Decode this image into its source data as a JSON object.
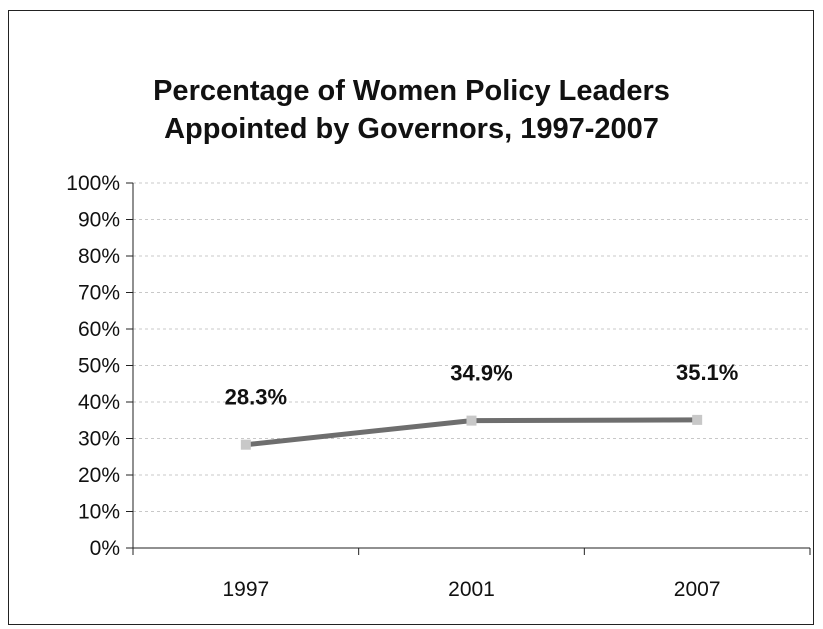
{
  "chart_data": {
    "type": "line",
    "title_lines": [
      "Percentage of Women Policy Leaders",
      "Appointed by Governors, 1997-2007"
    ],
    "categories": [
      "1997",
      "2001",
      "2007"
    ],
    "series": [
      {
        "values": [
          28.3,
          34.9,
          35.1
        ],
        "data_labels": [
          "28.3%",
          "34.9%",
          "35.1%"
        ]
      }
    ],
    "ylim": [
      0,
      100
    ],
    "y_ticks": [
      "0%",
      "10%",
      "20%",
      "30%",
      "40%",
      "50%",
      "60%",
      "70%",
      "80%",
      "90%",
      "100%"
    ],
    "grid": true,
    "legend": "none",
    "colors": {
      "line": "#6e6e6e",
      "marker": "#c8c8c8",
      "grid": "#c8c8c8",
      "axis": "#222222"
    }
  }
}
